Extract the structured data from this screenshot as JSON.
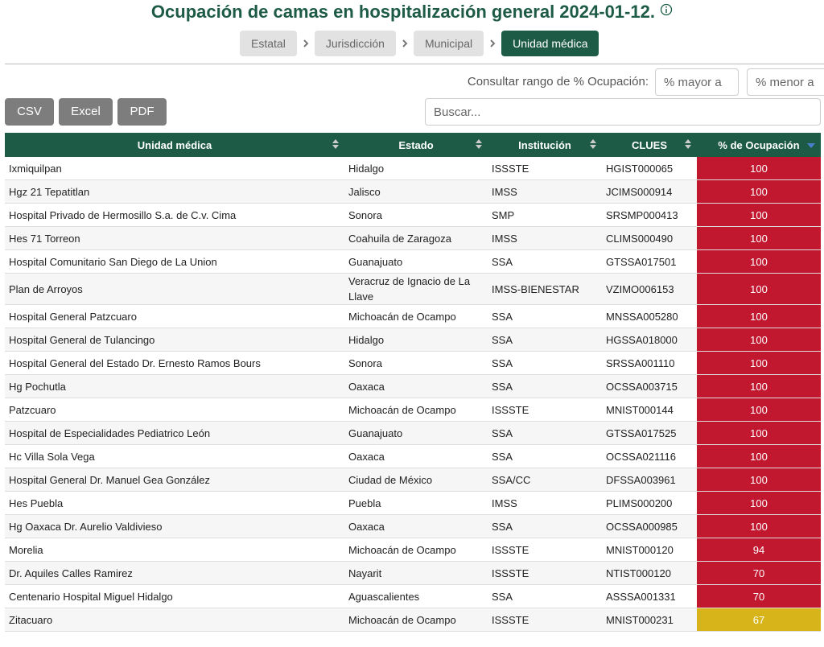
{
  "header": {
    "title": "Ocupación de camas en hospitalización general 2024-01-12."
  },
  "breadcrumb": [
    "Estatal",
    "Jurisdicción",
    "Municipal",
    "Unidad médica"
  ],
  "filter": {
    "label": "Consultar rango de % Ocupación:",
    "min_placeholder": "% mayor a",
    "max_placeholder": "% menor a"
  },
  "export_buttons": [
    "CSV",
    "Excel",
    "PDF"
  ],
  "search_placeholder": "Buscar...",
  "table": {
    "columns": [
      "Unidad médica",
      "Estado",
      "Institución",
      "CLUES",
      "% de Ocupación"
    ],
    "rows": [
      {
        "cells": [
          "Ixmiquilpan",
          "Hidalgo",
          "ISSSTE",
          "HGIST000065"
        ],
        "occupancy": 100,
        "color": "#c1172f"
      },
      {
        "cells": [
          "Hgz 21 Tepatitlan",
          "Jalisco",
          "IMSS",
          "JCIMS000914"
        ],
        "occupancy": 100,
        "color": "#c1172f"
      },
      {
        "cells": [
          "Hospital Privado de Hermosillo S.a. de C.v. Cima",
          "Sonora",
          "SMP",
          "SRSMP000413"
        ],
        "occupancy": 100,
        "color": "#c1172f"
      },
      {
        "cells": [
          "Hes 71 Torreon",
          "Coahuila de Zaragoza",
          "IMSS",
          "CLIMS000490"
        ],
        "occupancy": 100,
        "color": "#c1172f"
      },
      {
        "cells": [
          "Hospital Comunitario San Diego de La Union",
          "Guanajuato",
          "SSA",
          "GTSSA017501"
        ],
        "occupancy": 100,
        "color": "#c1172f"
      },
      {
        "cells": [
          "Plan de Arroyos",
          "Veracruz de Ignacio de La Llave",
          "IMSS-BIENESTAR",
          "VZIMO006153"
        ],
        "occupancy": 100,
        "color": "#c1172f"
      },
      {
        "cells": [
          "Hospital General Patzcuaro",
          "Michoacán de Ocampo",
          "SSA",
          "MNSSA005280"
        ],
        "occupancy": 100,
        "color": "#c1172f"
      },
      {
        "cells": [
          "Hospital General de Tulancingo",
          "Hidalgo",
          "SSA",
          "HGSSA018000"
        ],
        "occupancy": 100,
        "color": "#c1172f"
      },
      {
        "cells": [
          "Hospital General del Estado Dr. Ernesto Ramos Bours",
          "Sonora",
          "SSA",
          "SRSSA001110"
        ],
        "occupancy": 100,
        "color": "#c1172f"
      },
      {
        "cells": [
          "Hg Pochutla",
          "Oaxaca",
          "SSA",
          "OCSSA003715"
        ],
        "occupancy": 100,
        "color": "#c1172f"
      },
      {
        "cells": [
          "Patzcuaro",
          "Michoacán de Ocampo",
          "ISSSTE",
          "MNIST000144"
        ],
        "occupancy": 100,
        "color": "#c1172f"
      },
      {
        "cells": [
          "Hospital de Especialidades Pediatrico León",
          "Guanajuato",
          "SSA",
          "GTSSA017525"
        ],
        "occupancy": 100,
        "color": "#c1172f"
      },
      {
        "cells": [
          "Hc Villa Sola Vega",
          "Oaxaca",
          "SSA",
          "OCSSA021116"
        ],
        "occupancy": 100,
        "color": "#c1172f"
      },
      {
        "cells": [
          "Hospital General Dr. Manuel Gea González",
          "Ciudad de México",
          "SSA/CC",
          "DFSSA003961"
        ],
        "occupancy": 100,
        "color": "#c1172f"
      },
      {
        "cells": [
          "Hes Puebla",
          "Puebla",
          "IMSS",
          "PLIMS000200"
        ],
        "occupancy": 100,
        "color": "#c1172f"
      },
      {
        "cells": [
          "Hg Oaxaca Dr. Aurelio Valdivieso",
          "Oaxaca",
          "SSA",
          "OCSSA000985"
        ],
        "occupancy": 100,
        "color": "#c1172f"
      },
      {
        "cells": [
          "Morelia",
          "Michoacán de Ocampo",
          "ISSSTE",
          "MNIST000120"
        ],
        "occupancy": 94,
        "color": "#c1172f"
      },
      {
        "cells": [
          "Dr. Aquiles Calles Ramirez",
          "Nayarit",
          "ISSSTE",
          "NTIST000120"
        ],
        "occupancy": 70,
        "color": "#c1172f"
      },
      {
        "cells": [
          "Centenario Hospital Miguel Hidalgo",
          "Aguascalientes",
          "SSA",
          "ASSSA001331"
        ],
        "occupancy": 70,
        "color": "#c1172f"
      },
      {
        "cells": [
          "Zitacuaro",
          "Michoacán de Ocampo",
          "ISSSTE",
          "MNIST000231"
        ],
        "occupancy": 67,
        "color": "#d8b41b"
      }
    ]
  }
}
